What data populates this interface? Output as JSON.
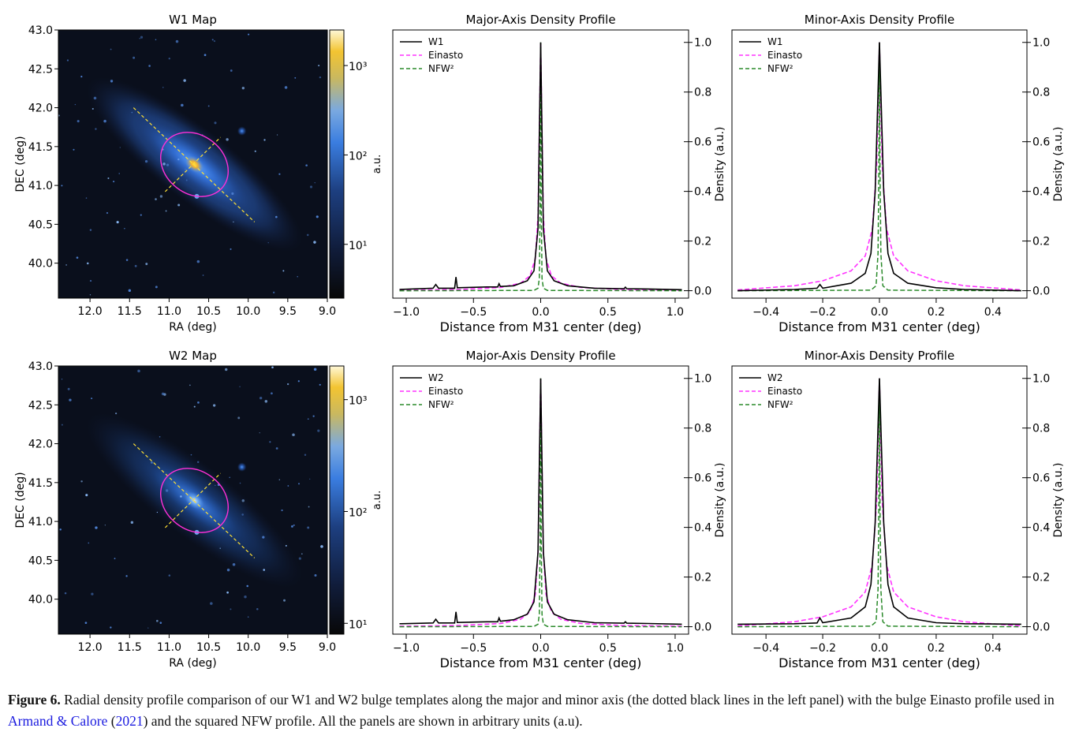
{
  "figure": {
    "label": "Figure 6.",
    "caption_pre": " Radial density profile comparison of our W1 and W2 bulge templates along the major and minor axis (the dotted black lines in the left panel) with the bulge Einasto profile used in ",
    "cite_authors": "Armand & Calore",
    "cite_open": " (",
    "cite_year": "2021",
    "caption_post": ") and the squared NFW profile. All the panels are shown in arbitrary units (a.u)."
  },
  "colors": {
    "data": "#000000",
    "einasto": "#ff33ff",
    "nfw2": "#2a8a2a",
    "axis_lines": "#ffe033",
    "ellipse": "#ff2fd7"
  },
  "chart_data": [
    {
      "type": "heatmap",
      "id": "w1-map",
      "title": "W1 Map",
      "xlabel": "RA (deg)",
      "ylabel": "DEC (deg)",
      "xlim": [
        12.4,
        9.0
      ],
      "ylim": [
        39.55,
        43.0
      ],
      "xticks": [
        "12.0",
        "11.5",
        "11.0",
        "10.5",
        "10.0",
        "9.5",
        "9.0"
      ],
      "yticks": [
        "40.0",
        "40.5",
        "41.0",
        "41.5",
        "42.0",
        "42.5",
        "43.0"
      ],
      "colorbar": {
        "label": "a.u.",
        "scale": "log",
        "ticks": [
          "10¹",
          "10²",
          "10³"
        ],
        "tick_values": [
          10,
          100,
          1000
        ],
        "range": [
          2.5,
          2500
        ]
      }
    },
    {
      "type": "line",
      "id": "w1-major",
      "title": "Major-Axis Density Profile",
      "xlabel": "Distance from M31 center (deg)",
      "ylabel": "Density (a.u.)",
      "xlim": [
        -1.1,
        1.1
      ],
      "ylim": [
        -0.03,
        1.05
      ],
      "xticks": [
        "−1.0",
        "−0.5",
        "0.0",
        "0.5",
        "1.0"
      ],
      "xtick_values": [
        -1.0,
        -0.5,
        0.0,
        0.5,
        1.0
      ],
      "yticks": [
        "0.0",
        "0.2",
        "0.4",
        "0.6",
        "0.8",
        "1.0"
      ],
      "ytick_values": [
        0,
        0.2,
        0.4,
        0.6,
        0.8,
        1.0
      ],
      "legend": [
        "W1",
        "Einasto",
        "NFW²"
      ],
      "legend_loc": "upper left",
      "series": [
        {
          "name": "W1",
          "x": [
            -1.05,
            -0.8,
            -0.78,
            -0.76,
            -0.64,
            -0.63,
            -0.62,
            -0.4,
            -0.32,
            -0.31,
            -0.3,
            -0.2,
            -0.1,
            -0.05,
            -0.02,
            0.0,
            0.02,
            0.05,
            0.1,
            0.2,
            0.4,
            0.62,
            0.63,
            0.64,
            0.8,
            1.05
          ],
          "y": [
            0.005,
            0.01,
            0.025,
            0.01,
            0.01,
            0.055,
            0.012,
            0.015,
            0.015,
            0.028,
            0.017,
            0.02,
            0.04,
            0.08,
            0.25,
            1.0,
            0.25,
            0.08,
            0.04,
            0.02,
            0.01,
            0.008,
            0.014,
            0.008,
            0.007,
            0.004
          ]
        },
        {
          "name": "Einasto",
          "x": [
            -1.05,
            -0.6,
            -0.3,
            -0.15,
            -0.08,
            -0.04,
            -0.02,
            0.0,
            0.02,
            0.04,
            0.08,
            0.15,
            0.3,
            0.6,
            1.05
          ],
          "y": [
            0.002,
            0.005,
            0.013,
            0.03,
            0.06,
            0.13,
            0.3,
            1.0,
            0.3,
            0.13,
            0.06,
            0.03,
            0.013,
            0.005,
            0.002
          ]
        },
        {
          "name": "NFW²",
          "x": [
            -1.05,
            -0.05,
            -0.02,
            -0.01,
            -0.004,
            0.0,
            0.004,
            0.01,
            0.02,
            0.05,
            1.05
          ],
          "y": [
            0.0,
            0.001,
            0.01,
            0.05,
            0.35,
            1.0,
            0.35,
            0.05,
            0.01,
            0.001,
            0.0
          ]
        }
      ]
    },
    {
      "type": "line",
      "id": "w1-minor",
      "title": "Minor-Axis Density Profile",
      "xlabel": "Distance from M31 center (deg)",
      "ylabel": "Density (a.u.)",
      "xlim": [
        -0.52,
        0.52
      ],
      "ylim": [
        -0.03,
        1.05
      ],
      "xticks": [
        "−0.4",
        "−0.2",
        "0.0",
        "0.2",
        "0.4"
      ],
      "xtick_values": [
        -0.4,
        -0.2,
        0.0,
        0.2,
        0.4
      ],
      "yticks": [
        "0.0",
        "0.2",
        "0.4",
        "0.6",
        "0.8",
        "1.0"
      ],
      "ytick_values": [
        0,
        0.2,
        0.4,
        0.6,
        0.8,
        1.0
      ],
      "legend": [
        "W1",
        "Einasto",
        "NFW²"
      ],
      "legend_loc": "upper left",
      "series": [
        {
          "name": "W1",
          "x": [
            -0.5,
            -0.3,
            -0.22,
            -0.21,
            -0.2,
            -0.1,
            -0.05,
            -0.03,
            -0.015,
            0.0,
            0.015,
            0.03,
            0.05,
            0.1,
            0.2,
            0.3,
            0.5
          ],
          "y": [
            0.0,
            0.005,
            0.01,
            0.025,
            0.01,
            0.03,
            0.07,
            0.15,
            0.4,
            1.0,
            0.4,
            0.15,
            0.07,
            0.03,
            0.012,
            0.005,
            0.0
          ]
        },
        {
          "name": "Einasto",
          "x": [
            -0.5,
            -0.3,
            -0.2,
            -0.1,
            -0.05,
            -0.025,
            -0.01,
            0.0,
            0.01,
            0.025,
            0.05,
            0.1,
            0.2,
            0.3,
            0.5
          ],
          "y": [
            0.003,
            0.02,
            0.04,
            0.08,
            0.14,
            0.25,
            0.5,
            1.0,
            0.5,
            0.25,
            0.14,
            0.08,
            0.04,
            0.02,
            0.003
          ]
        },
        {
          "name": "NFW²",
          "x": [
            -0.5,
            -0.03,
            -0.012,
            -0.005,
            -0.002,
            0.0,
            0.002,
            0.005,
            0.012,
            0.03,
            0.5
          ],
          "y": [
            0.0,
            0.002,
            0.02,
            0.15,
            0.5,
            1.0,
            0.5,
            0.15,
            0.02,
            0.002,
            0.0
          ]
        }
      ]
    },
    {
      "type": "heatmap",
      "id": "w2-map",
      "title": "W2 Map",
      "xlabel": "RA (deg)",
      "ylabel": "DEC (deg)",
      "xlim": [
        12.4,
        9.0
      ],
      "ylim": [
        39.55,
        43.0
      ],
      "xticks": [
        "12.0",
        "11.5",
        "11.0",
        "10.5",
        "10.0",
        "9.5",
        "9.0"
      ],
      "yticks": [
        "40.0",
        "40.5",
        "41.0",
        "41.5",
        "42.0",
        "42.5",
        "43.0"
      ],
      "colorbar": {
        "label": "a.u.",
        "scale": "log",
        "ticks": [
          "10¹",
          "10²",
          "10³"
        ],
        "tick_values": [
          10,
          100,
          1000
        ],
        "range": [
          8,
          2000
        ]
      }
    },
    {
      "type": "line",
      "id": "w2-major",
      "title": "Major-Axis Density Profile",
      "xlabel": "Distance from M31 center (deg)",
      "ylabel": "Density (a.u.)",
      "xlim": [
        -1.1,
        1.1
      ],
      "ylim": [
        -0.03,
        1.05
      ],
      "xticks": [
        "−1.0",
        "−0.5",
        "0.0",
        "0.5",
        "1.0"
      ],
      "xtick_values": [
        -1.0,
        -0.5,
        0.0,
        0.5,
        1.0
      ],
      "yticks": [
        "0.0",
        "0.2",
        "0.4",
        "0.6",
        "0.8",
        "1.0"
      ],
      "ytick_values": [
        0,
        0.2,
        0.4,
        0.6,
        0.8,
        1.0
      ],
      "legend": [
        "W2",
        "Einasto",
        "NFW²"
      ],
      "legend_loc": "upper left",
      "series": [
        {
          "name": "W2",
          "x": [
            -1.05,
            -0.8,
            -0.78,
            -0.76,
            -0.64,
            -0.63,
            -0.62,
            -0.4,
            -0.32,
            -0.31,
            -0.3,
            -0.2,
            -0.1,
            -0.05,
            -0.02,
            0.0,
            0.02,
            0.05,
            0.1,
            0.2,
            0.4,
            0.62,
            0.63,
            0.64,
            0.8,
            1.05
          ],
          "y": [
            0.012,
            0.015,
            0.03,
            0.015,
            0.015,
            0.06,
            0.017,
            0.02,
            0.02,
            0.035,
            0.022,
            0.028,
            0.05,
            0.1,
            0.3,
            1.0,
            0.3,
            0.1,
            0.05,
            0.028,
            0.016,
            0.014,
            0.02,
            0.014,
            0.013,
            0.01
          ]
        },
        {
          "name": "Einasto",
          "x": [
            -1.05,
            -0.6,
            -0.3,
            -0.15,
            -0.08,
            -0.04,
            -0.02,
            0.0,
            0.02,
            0.04,
            0.08,
            0.15,
            0.3,
            0.6,
            1.05
          ],
          "y": [
            0.002,
            0.005,
            0.013,
            0.03,
            0.06,
            0.13,
            0.3,
            1.0,
            0.3,
            0.13,
            0.06,
            0.03,
            0.013,
            0.005,
            0.002
          ]
        },
        {
          "name": "NFW²",
          "x": [
            -1.05,
            -0.05,
            -0.02,
            -0.01,
            -0.004,
            0.0,
            0.004,
            0.01,
            0.02,
            0.05,
            1.05
          ],
          "y": [
            0.0,
            0.001,
            0.01,
            0.05,
            0.35,
            1.0,
            0.35,
            0.05,
            0.01,
            0.001,
            0.0
          ]
        }
      ]
    },
    {
      "type": "line",
      "id": "w2-minor",
      "title": "Minor-Axis Density Profile",
      "xlabel": "Distance from M31 center (deg)",
      "ylabel": "Density (a.u.)",
      "xlim": [
        -0.52,
        0.52
      ],
      "ylim": [
        -0.03,
        1.05
      ],
      "xticks": [
        "−0.4",
        "−0.2",
        "0.0",
        "0.2",
        "0.4"
      ],
      "xtick_values": [
        -0.4,
        -0.2,
        0.0,
        0.2,
        0.4
      ],
      "yticks": [
        "0.0",
        "0.2",
        "0.4",
        "0.6",
        "0.8",
        "1.0"
      ],
      "ytick_values": [
        0,
        0.2,
        0.4,
        0.6,
        0.8,
        1.0
      ],
      "legend": [
        "W2",
        "Einasto",
        "NFW²"
      ],
      "legend_loc": "upper left",
      "series": [
        {
          "name": "W2",
          "x": [
            -0.5,
            -0.3,
            -0.22,
            -0.21,
            -0.2,
            -0.1,
            -0.05,
            -0.03,
            -0.015,
            0.0,
            0.015,
            0.03,
            0.05,
            0.1,
            0.2,
            0.3,
            0.5
          ],
          "y": [
            0.01,
            0.012,
            0.015,
            0.035,
            0.016,
            0.035,
            0.08,
            0.17,
            0.42,
            1.0,
            0.42,
            0.17,
            0.08,
            0.035,
            0.016,
            0.012,
            0.01
          ]
        },
        {
          "name": "Einasto",
          "x": [
            -0.5,
            -0.3,
            -0.2,
            -0.1,
            -0.05,
            -0.025,
            -0.01,
            0.0,
            0.01,
            0.025,
            0.05,
            0.1,
            0.2,
            0.3,
            0.5
          ],
          "y": [
            0.003,
            0.02,
            0.04,
            0.08,
            0.14,
            0.25,
            0.5,
            1.0,
            0.5,
            0.25,
            0.14,
            0.08,
            0.04,
            0.02,
            0.003
          ]
        },
        {
          "name": "NFW²",
          "x": [
            -0.5,
            -0.03,
            -0.012,
            -0.005,
            -0.002,
            0.0,
            0.002,
            0.005,
            0.012,
            0.03,
            0.5
          ],
          "y": [
            0.0,
            0.002,
            0.02,
            0.15,
            0.5,
            1.0,
            0.5,
            0.15,
            0.02,
            0.002,
            0.0
          ]
        }
      ]
    }
  ]
}
